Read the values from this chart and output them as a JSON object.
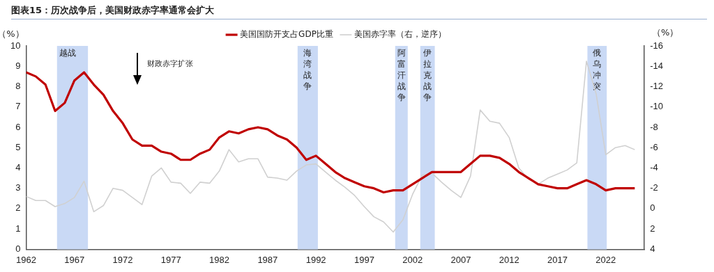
{
  "chart_data": {
    "type": "line",
    "title": "图表15：历次战争后，美国财政赤字率通常会扩大",
    "ylabel": "（%）",
    "y2label": "（%）",
    "x": [
      1962,
      1963,
      1964,
      1965,
      1966,
      1967,
      1968,
      1969,
      1970,
      1971,
      1972,
      1973,
      1974,
      1975,
      1976,
      1977,
      1978,
      1979,
      1980,
      1981,
      1982,
      1983,
      1984,
      1985,
      1986,
      1987,
      1988,
      1989,
      1990,
      1991,
      1992,
      1993,
      1994,
      1995,
      1996,
      1997,
      1998,
      1999,
      2000,
      2001,
      2002,
      2003,
      2004,
      2005,
      2006,
      2007,
      2008,
      2009,
      2010,
      2011,
      2012,
      2013,
      2014,
      2015,
      2016,
      2017,
      2018,
      2019,
      2020,
      2021,
      2022,
      2023,
      2024,
      2025
    ],
    "series": [
      {
        "name": "美国国防开支占GDP比重",
        "color": "#c00000",
        "values": [
          8.7,
          8.5,
          8.1,
          6.8,
          7.2,
          8.3,
          8.7,
          8.1,
          7.6,
          6.8,
          6.2,
          5.4,
          5.1,
          5.1,
          4.8,
          4.7,
          4.4,
          4.4,
          4.7,
          4.9,
          5.5,
          5.8,
          5.7,
          5.9,
          6.0,
          5.9,
          5.6,
          5.4,
          5.0,
          4.4,
          4.6,
          4.2,
          3.8,
          3.5,
          3.3,
          3.1,
          3.0,
          2.8,
          2.9,
          2.9,
          3.2,
          3.5,
          3.8,
          3.8,
          3.8,
          3.8,
          4.2,
          4.6,
          4.6,
          4.5,
          4.2,
          3.8,
          3.5,
          3.2,
          3.1,
          3.0,
          3.0,
          3.2,
          3.4,
          3.2,
          2.9,
          3.0,
          3.0,
          3.0
        ]
      },
      {
        "name": "美国赤字率（右，逆序）",
        "color": "#d0d0d0",
        "axis": "y2",
        "values": [
          -1.2,
          -0.8,
          -0.8,
          -0.2,
          -0.5,
          -1.1,
          -2.7,
          0.3,
          -0.3,
          -2.0,
          -1.8,
          -1.1,
          -0.4,
          -3.2,
          -4.0,
          -2.6,
          -2.5,
          -1.5,
          -2.6,
          -2.5,
          -3.7,
          -5.8,
          -4.6,
          -4.9,
          -4.9,
          -3.1,
          -3.0,
          -2.8,
          -3.7,
          -4.3,
          -4.4,
          -3.6,
          -2.8,
          -2.1,
          -1.3,
          -0.2,
          0.8,
          1.3,
          2.3,
          1.1,
          -1.4,
          -3.3,
          -3.5,
          -2.6,
          -1.8,
          -1.1,
          -3.2,
          -9.7,
          -8.6,
          -8.4,
          -7.0,
          -4.0,
          -2.9,
          -2.4,
          -3.0,
          -3.4,
          -3.8,
          -4.5,
          -14.5,
          -11.3,
          -5.3,
          -6.0,
          -6.2,
          -5.8
        ]
      }
    ],
    "xlim": [
      1962,
      2026
    ],
    "xticks": [
      1962,
      1967,
      1972,
      1977,
      1982,
      1987,
      1992,
      1997,
      2002,
      2007,
      2012,
      2017,
      2022
    ],
    "ylim": [
      0,
      10
    ],
    "yticks": [
      0,
      1,
      2,
      3,
      4,
      5,
      6,
      7,
      8,
      9,
      10
    ],
    "y2lim": [
      4,
      -16
    ],
    "y2ticks": [
      4,
      2,
      0,
      -2,
      -4,
      -6,
      -8,
      -10,
      -12,
      -14,
      -16
    ],
    "bands": [
      {
        "axis": "x",
        "from": 1965.2,
        "to": 1968.4,
        "label": "越战",
        "color": "#c9d9f5"
      },
      {
        "axis": "x",
        "from": 1990.1,
        "to": 1992.2,
        "label": "海湾战争",
        "color": "#c9d9f5"
      },
      {
        "axis": "x",
        "from": 2000.2,
        "to": 2001.5,
        "label": "阿富汗战争",
        "color": "#c9d9f5"
      },
      {
        "axis": "x",
        "from": 2002.8,
        "to": 2004.3,
        "label": "伊拉克战争",
        "color": "#c9d9f5"
      },
      {
        "axis": "x",
        "from": 2020.1,
        "to": 2022.1,
        "label": "俄乌冲突",
        "color": "#c9d9f5"
      }
    ],
    "annotations": [
      "财政赤字扩张"
    ],
    "legend": "top",
    "grid": false,
    "marker": "none",
    "line_style": "solid"
  }
}
